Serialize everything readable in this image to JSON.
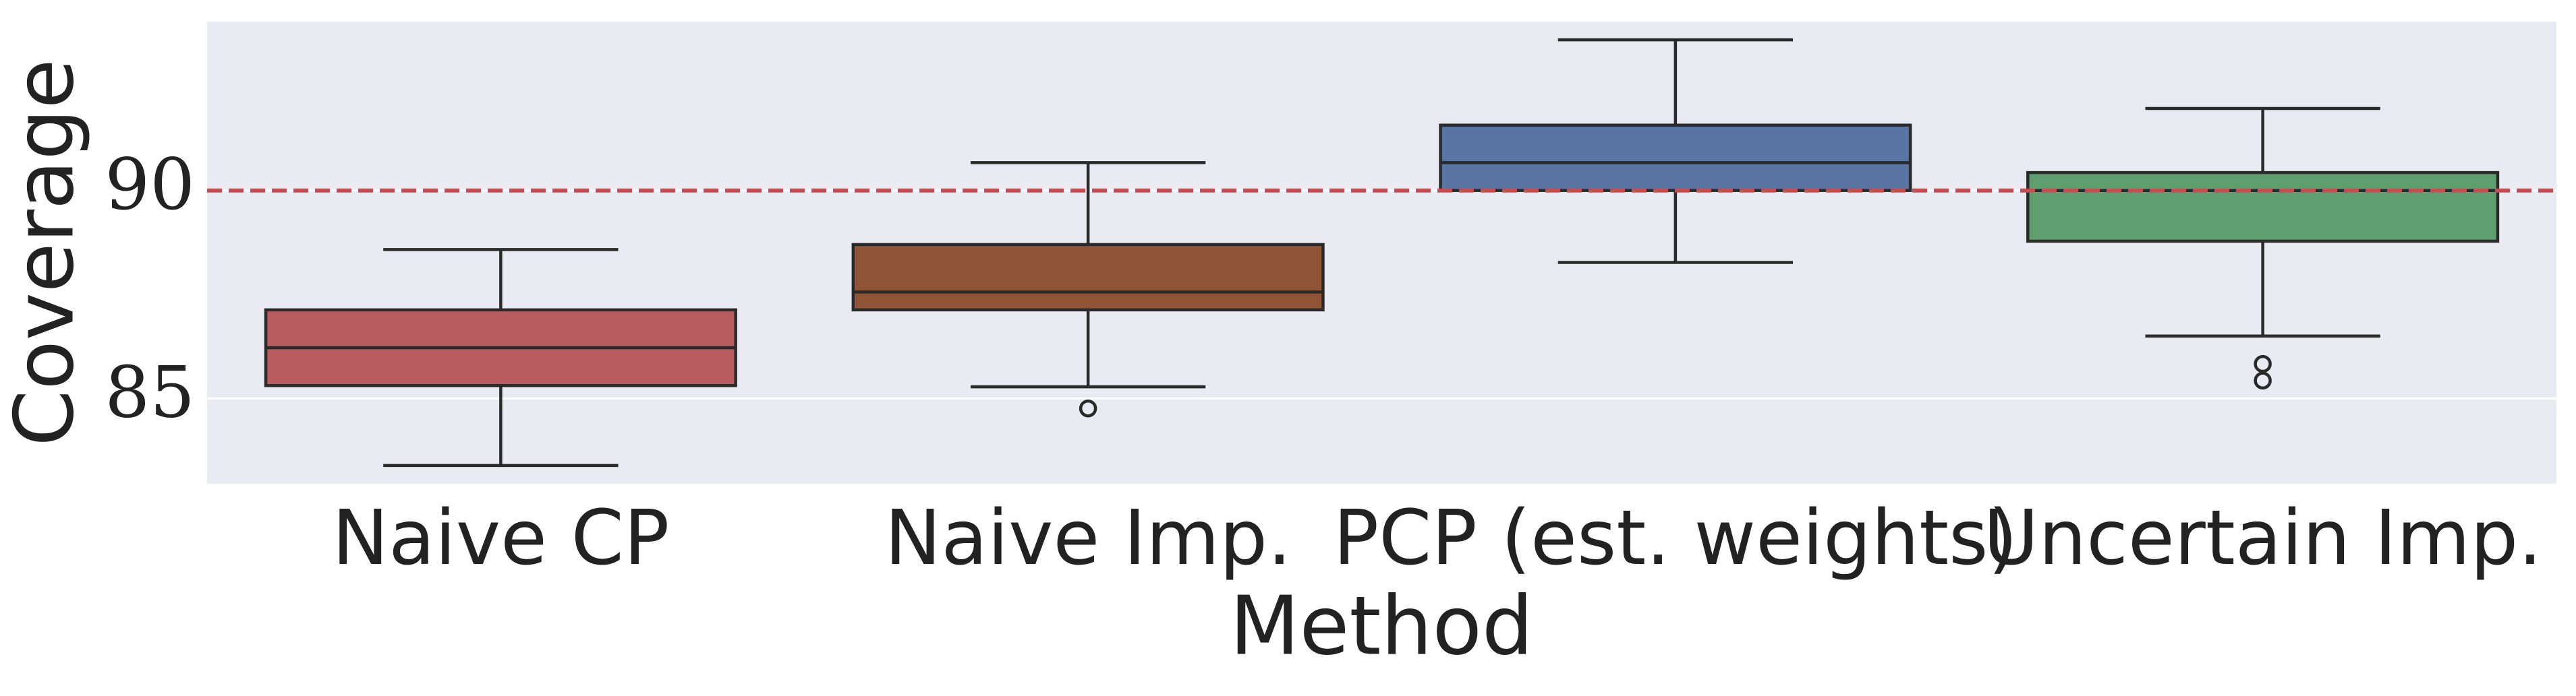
{
  "chart_data": {
    "type": "box",
    "xlabel": "Method",
    "ylabel": "Coverage",
    "categories": [
      "Naive CP",
      "Naive Imp.",
      "PCP (est. weights)",
      "Uncertain Imp."
    ],
    "colors": [
      "#b85c60",
      "#8f5536",
      "#5975a4",
      "#5f9e6e"
    ],
    "boxes": [
      {
        "whislo": 83.39,
        "q1": 85.31,
        "med": 86.22,
        "q3": 87.13,
        "whishi": 88.58,
        "fliers": []
      },
      {
        "whislo": 85.28,
        "q1": 87.13,
        "med": 87.56,
        "q3": 88.7,
        "whishi": 90.67,
        "fliers": [
          84.76
        ]
      },
      {
        "whislo": 88.27,
        "q1": 90.0,
        "med": 90.67,
        "q3": 91.57,
        "whishi": 93.62,
        "fliers": []
      },
      {
        "whislo": 86.5,
        "q1": 88.78,
        "med": 90.0,
        "q3": 90.43,
        "whishi": 91.97,
        "fliers": [
          85.83,
          85.43
        ]
      }
    ],
    "reference_line": {
      "value": 90,
      "color": "#c44e52"
    },
    "ylim": [
      82.95,
      94.06
    ],
    "yticks": [
      85,
      90
    ],
    "grid": true
  }
}
